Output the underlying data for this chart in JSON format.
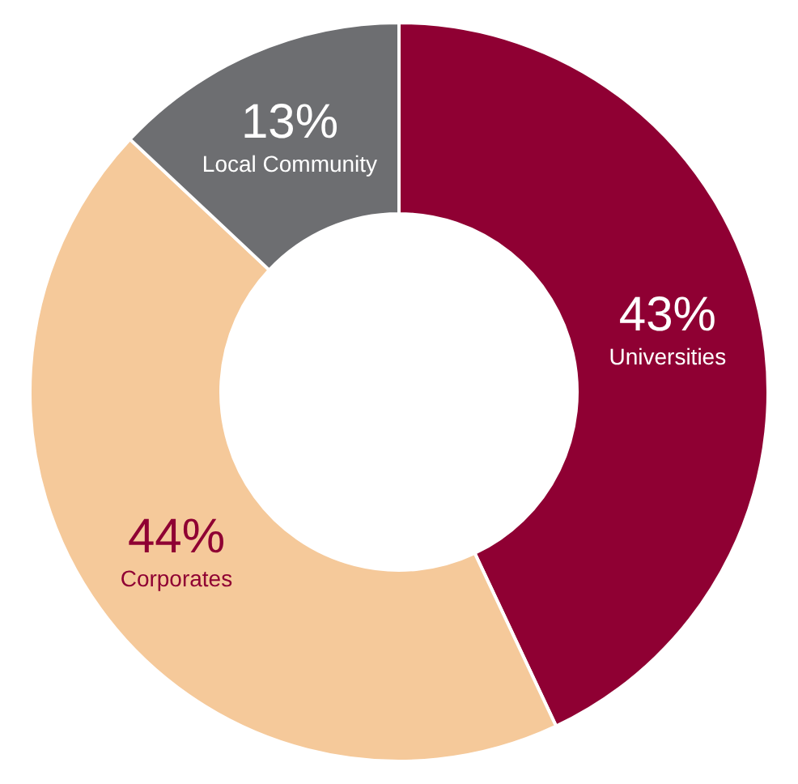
{
  "chart_data": {
    "type": "donut",
    "categories": [
      "Universities",
      "Corporates",
      "Local Community"
    ],
    "values": [
      43,
      44,
      13
    ],
    "colors": [
      "#8f0033",
      "#f5c99a",
      "#6d6e71"
    ],
    "value_labels": [
      "43%",
      "44%",
      "13%"
    ],
    "legend": false
  }
}
